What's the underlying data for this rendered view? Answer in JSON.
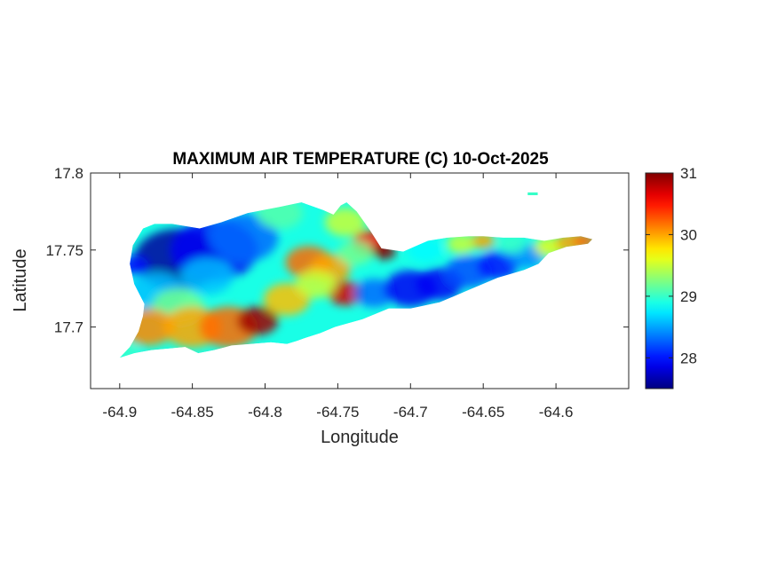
{
  "map": {
    "title": "MAXIMUM AIR TEMPERATURE (C) 10-Oct-2025",
    "xlabel": "Longitude",
    "ylabel": "Latitude",
    "xlim": [
      -64.92,
      -64.55
    ],
    "ylim": [
      17.66,
      17.8
    ],
    "xticks": [
      {
        "value": -64.9,
        "label": "-64.9"
      },
      {
        "value": -64.85,
        "label": "-64.85"
      },
      {
        "value": -64.8,
        "label": "-64.8"
      },
      {
        "value": -64.75,
        "label": "-64.75"
      },
      {
        "value": -64.7,
        "label": "-64.7"
      },
      {
        "value": -64.65,
        "label": "-64.65"
      },
      {
        "value": -64.6,
        "label": "-64.6"
      }
    ],
    "yticks": [
      {
        "value": 17.7,
        "label": "17.7"
      },
      {
        "value": 17.75,
        "label": "17.75"
      },
      {
        "value": 17.8,
        "label": "17.8"
      }
    ],
    "colorbar": {
      "colormap": "jet",
      "range": [
        27.5,
        31.0
      ],
      "ticks": [
        {
          "value": 28,
          "label": "28"
        },
        {
          "value": 29,
          "label": "29"
        },
        {
          "value": 30,
          "label": "30"
        },
        {
          "value": 31,
          "label": "31"
        }
      ]
    },
    "island_outline": [
      [
        -64.9,
        17.68
      ],
      [
        -64.893,
        17.687
      ],
      [
        -64.887,
        17.697
      ],
      [
        -64.884,
        17.707
      ],
      [
        -64.883,
        17.715
      ],
      [
        -64.89,
        17.728
      ],
      [
        -64.893,
        17.741
      ],
      [
        -64.891,
        17.753
      ],
      [
        -64.884,
        17.764
      ],
      [
        -64.876,
        17.767
      ],
      [
        -64.864,
        17.767
      ],
      [
        -64.845,
        17.764
      ],
      [
        -64.83,
        17.768
      ],
      [
        -64.812,
        17.774
      ],
      [
        -64.79,
        17.778
      ],
      [
        -64.775,
        17.781
      ],
      [
        -64.76,
        17.776
      ],
      [
        -64.753,
        17.773
      ],
      [
        -64.748,
        17.779
      ],
      [
        -64.744,
        17.781
      ],
      [
        -64.737,
        17.775
      ],
      [
        -64.728,
        17.763
      ],
      [
        -64.72,
        17.751
      ],
      [
        -64.705,
        17.749
      ],
      [
        -64.688,
        17.756
      ],
      [
        -64.675,
        17.758
      ],
      [
        -64.66,
        17.759
      ],
      [
        -64.65,
        17.759
      ],
      [
        -64.636,
        17.758
      ],
      [
        -64.622,
        17.758
      ],
      [
        -64.608,
        17.756
      ],
      [
        -64.595,
        17.758
      ],
      [
        -64.583,
        17.759
      ],
      [
        -64.575,
        17.757
      ],
      [
        -64.578,
        17.754
      ],
      [
        -64.593,
        17.752
      ],
      [
        -64.605,
        17.748
      ],
      [
        -64.612,
        17.741
      ],
      [
        -64.622,
        17.737
      ],
      [
        -64.64,
        17.732
      ],
      [
        -64.66,
        17.724
      ],
      [
        -64.68,
        17.716
      ],
      [
        -64.7,
        17.712
      ],
      [
        -64.715,
        17.712
      ],
      [
        -64.733,
        17.705
      ],
      [
        -64.752,
        17.7
      ],
      [
        -64.762,
        17.696
      ],
      [
        -64.772,
        17.693
      ],
      [
        -64.778,
        17.691
      ],
      [
        -64.785,
        17.689
      ],
      [
        -64.796,
        17.69
      ],
      [
        -64.81,
        17.689
      ],
      [
        -64.823,
        17.688
      ],
      [
        -64.835,
        17.685
      ],
      [
        -64.846,
        17.683
      ],
      [
        -64.855,
        17.687
      ],
      [
        -64.866,
        17.686
      ],
      [
        -64.878,
        17.685
      ],
      [
        -64.89,
        17.683
      ]
    ],
    "cay_outline": [
      [
        -64.619,
        17.787
      ],
      [
        -64.613,
        17.787
      ],
      [
        -64.613,
        17.786
      ],
      [
        -64.619,
        17.786
      ]
    ],
    "temperature_field": [
      {
        "lon": -64.86,
        "lat": 17.744,
        "value": 27.6,
        "radius_deg": 0.03
      },
      {
        "lon": -64.835,
        "lat": 17.75,
        "value": 27.9,
        "radius_deg": 0.03
      },
      {
        "lon": -64.815,
        "lat": 17.758,
        "value": 28.3,
        "radius_deg": 0.024
      },
      {
        "lon": -64.875,
        "lat": 17.722,
        "value": 28.6,
        "radius_deg": 0.02
      },
      {
        "lon": -64.84,
        "lat": 17.733,
        "value": 28.6,
        "radius_deg": 0.018
      },
      {
        "lon": -64.79,
        "lat": 17.774,
        "value": 29.1,
        "radius_deg": 0.016
      },
      {
        "lon": -64.86,
        "lat": 17.713,
        "value": 29.2,
        "radius_deg": 0.018
      },
      {
        "lon": -64.88,
        "lat": 17.7,
        "value": 30.1,
        "radius_deg": 0.018
      },
      {
        "lon": -64.85,
        "lat": 17.7,
        "value": 30.0,
        "radius_deg": 0.02
      },
      {
        "lon": -64.825,
        "lat": 17.7,
        "value": 30.2,
        "radius_deg": 0.02
      },
      {
        "lon": -64.805,
        "lat": 17.704,
        "value": 30.9,
        "radius_deg": 0.014
      },
      {
        "lon": -64.785,
        "lat": 17.718,
        "value": 29.9,
        "radius_deg": 0.016
      },
      {
        "lon": -64.77,
        "lat": 17.742,
        "value": 30.2,
        "radius_deg": 0.016
      },
      {
        "lon": -64.755,
        "lat": 17.738,
        "value": 30.0,
        "radius_deg": 0.014
      },
      {
        "lon": -64.745,
        "lat": 17.722,
        "value": 30.7,
        "radius_deg": 0.012
      },
      {
        "lon": -64.765,
        "lat": 17.728,
        "value": 29.5,
        "radius_deg": 0.014
      },
      {
        "lon": -64.745,
        "lat": 17.768,
        "value": 29.5,
        "radius_deg": 0.014
      },
      {
        "lon": -64.728,
        "lat": 17.755,
        "value": 30.5,
        "radius_deg": 0.012
      },
      {
        "lon": -64.718,
        "lat": 17.749,
        "value": 31.0,
        "radius_deg": 0.008
      },
      {
        "lon": -64.738,
        "lat": 17.748,
        "value": 29.2,
        "radius_deg": 0.012
      },
      {
        "lon": -64.725,
        "lat": 17.722,
        "value": 28.3,
        "radius_deg": 0.014
      },
      {
        "lon": -64.7,
        "lat": 17.725,
        "value": 27.9,
        "radius_deg": 0.018
      },
      {
        "lon": -64.68,
        "lat": 17.728,
        "value": 27.9,
        "radius_deg": 0.016
      },
      {
        "lon": -64.66,
        "lat": 17.736,
        "value": 28.2,
        "radius_deg": 0.016
      },
      {
        "lon": -64.64,
        "lat": 17.74,
        "value": 28.0,
        "radius_deg": 0.014
      },
      {
        "lon": -64.62,
        "lat": 17.746,
        "value": 28.4,
        "radius_deg": 0.012
      },
      {
        "lon": -64.69,
        "lat": 17.75,
        "value": 28.8,
        "radius_deg": 0.012
      },
      {
        "lon": -64.665,
        "lat": 17.754,
        "value": 29.5,
        "radius_deg": 0.01
      },
      {
        "lon": -64.65,
        "lat": 17.756,
        "value": 30.0,
        "radius_deg": 0.008
      },
      {
        "lon": -64.63,
        "lat": 17.754,
        "value": 29.0,
        "radius_deg": 0.01
      },
      {
        "lon": -64.605,
        "lat": 17.752,
        "value": 29.6,
        "radius_deg": 0.01
      },
      {
        "lon": -64.59,
        "lat": 17.755,
        "value": 30.0,
        "radius_deg": 0.01
      },
      {
        "lon": -64.58,
        "lat": 17.756,
        "value": 30.2,
        "radius_deg": 0.008
      },
      {
        "lon": -64.895,
        "lat": 17.684,
        "value": 29.0,
        "radius_deg": 0.008
      },
      {
        "lon": -64.89,
        "lat": 17.74,
        "value": 28.0,
        "radius_deg": 0.01
      },
      {
        "lon": -64.616,
        "lat": 17.787,
        "value": 29.0,
        "radius_deg": 0.006
      }
    ]
  }
}
